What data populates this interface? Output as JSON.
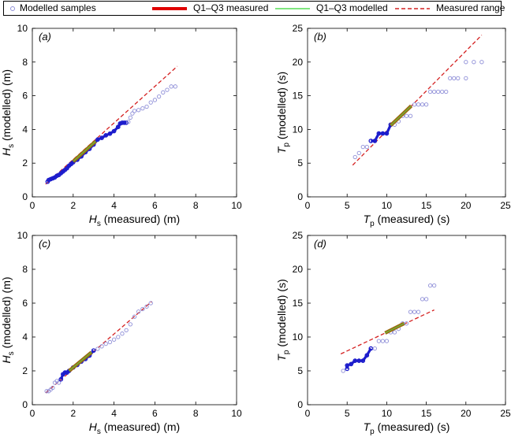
{
  "legend": {
    "items": [
      {
        "label": "Modelled samples",
        "kind": "marker",
        "color": "#8f8fd8"
      },
      {
        "label": "Q1–Q3 measured",
        "kind": "thick-line",
        "color": "#e00000"
      },
      {
        "label": "Q1–Q3 modelled",
        "kind": "thin-line",
        "color": "#55dd55"
      },
      {
        "label": "Measured range",
        "kind": "dashed-line",
        "color": "#d42020"
      }
    ]
  },
  "colors": {
    "samples": "#8f8fd8",
    "samples_dense": "#1c1ccc",
    "q_measured": "#e00000",
    "q_modelled": "#55dd55",
    "q_overlap": "#9a6a10",
    "range": "#d42020"
  },
  "chart_data": [
    {
      "type": "scatter",
      "panel": "(a)",
      "x_label_main": "H",
      "x_label_sub": "s",
      "x_label_rest": " (measured) (m)",
      "y_label_main": "H",
      "y_label_sub": "s",
      "y_label_rest": " (modelled) (m)",
      "xlim": [
        0,
        10
      ],
      "ylim": [
        0,
        10
      ],
      "xticks": [
        0,
        2,
        4,
        6,
        8,
        10
      ],
      "yticks": [
        0,
        2,
        4,
        6,
        8,
        10
      ],
      "samples": [
        [
          0.75,
          0.9
        ],
        [
          0.8,
          1.0
        ],
        [
          0.9,
          1.05
        ],
        [
          1.0,
          1.1
        ],
        [
          1.1,
          1.15
        ],
        [
          1.2,
          1.25
        ],
        [
          1.3,
          1.3
        ],
        [
          1.4,
          1.4
        ],
        [
          1.5,
          1.5
        ],
        [
          1.6,
          1.6
        ],
        [
          1.7,
          1.7
        ],
        [
          1.8,
          1.85
        ],
        [
          1.9,
          1.95
        ],
        [
          2.0,
          2.05
        ],
        [
          2.2,
          2.2
        ],
        [
          2.4,
          2.4
        ],
        [
          2.6,
          2.65
        ],
        [
          2.8,
          2.85
        ],
        [
          3.0,
          3.1
        ],
        [
          3.2,
          3.4
        ],
        [
          3.4,
          3.5
        ],
        [
          3.6,
          3.65
        ],
        [
          3.8,
          3.75
        ],
        [
          4.0,
          3.9
        ],
        [
          4.2,
          4.15
        ],
        [
          4.3,
          4.35
        ],
        [
          4.4,
          4.4
        ],
        [
          4.5,
          4.4
        ],
        [
          4.6,
          4.4
        ],
        [
          4.7,
          4.45
        ],
        [
          4.8,
          4.7
        ],
        [
          4.9,
          4.95
        ],
        [
          5.0,
          5.1
        ],
        [
          5.2,
          5.15
        ],
        [
          5.4,
          5.25
        ],
        [
          5.6,
          5.35
        ],
        [
          5.8,
          5.6
        ],
        [
          6.0,
          5.75
        ],
        [
          6.2,
          5.95
        ],
        [
          6.4,
          6.2
        ],
        [
          6.6,
          6.35
        ],
        [
          6.8,
          6.55
        ],
        [
          7.0,
          6.55
        ]
      ],
      "dense_range": [
        0.7,
        4.6
      ],
      "q_measured": [
        [
          2.0,
          2.1
        ],
        [
          3.1,
          3.3
        ]
      ],
      "q_modelled": [
        [
          2.0,
          2.1
        ],
        [
          3.1,
          3.3
        ]
      ],
      "range_line": [
        [
          0.65,
          0.75
        ],
        [
          7.1,
          7.75
        ]
      ]
    },
    {
      "type": "scatter",
      "panel": "(b)",
      "x_label_main": "T",
      "x_label_sub": "p",
      "x_label_rest": " (measured) (s)",
      "y_label_main": "T",
      "y_label_sub": "p",
      "y_label_rest": " (modelled) (s)",
      "xlim": [
        0,
        25
      ],
      "ylim": [
        0,
        25
      ],
      "xticks": [
        0,
        5,
        10,
        15,
        20,
        25
      ],
      "yticks": [
        0,
        5,
        10,
        15,
        20,
        25
      ],
      "samples": [
        [
          6.0,
          5.9
        ],
        [
          6.5,
          6.5
        ],
        [
          7.0,
          7.4
        ],
        [
          7.5,
          7.4
        ],
        [
          8.0,
          8.3
        ],
        [
          8.5,
          8.3
        ],
        [
          9.0,
          9.4
        ],
        [
          9.5,
          9.4
        ],
        [
          10.0,
          9.4
        ],
        [
          10.5,
          10.7
        ],
        [
          11.0,
          10.7
        ],
        [
          11.5,
          11.2
        ],
        [
          12.0,
          12.0
        ],
        [
          12.5,
          12.0
        ],
        [
          13.0,
          12.0
        ],
        [
          13.5,
          13.7
        ],
        [
          14.0,
          13.7
        ],
        [
          14.5,
          13.7
        ],
        [
          15.0,
          13.7
        ],
        [
          15.5,
          15.6
        ],
        [
          16.0,
          15.6
        ],
        [
          16.5,
          15.6
        ],
        [
          17.0,
          15.6
        ],
        [
          17.5,
          15.6
        ],
        [
          18.0,
          17.6
        ],
        [
          18.5,
          17.6
        ],
        [
          19.0,
          17.6
        ],
        [
          20.0,
          17.6
        ],
        [
          20.0,
          20.0
        ],
        [
          21.0,
          20.0
        ],
        [
          22.0,
          20.0
        ]
      ],
      "dense_range": [
        8.0,
        10.5
      ],
      "q_measured": [
        [
          10.5,
          10.6
        ],
        [
          13.1,
          13.5
        ]
      ],
      "q_modelled": [
        [
          10.5,
          10.6
        ],
        [
          13.1,
          13.5
        ]
      ],
      "range_line": [
        [
          5.7,
          4.7
        ],
        [
          22.0,
          24.0
        ]
      ]
    },
    {
      "type": "scatter",
      "panel": "(c)",
      "x_label_main": "H",
      "x_label_sub": "s",
      "x_label_rest": " (measured) (m)",
      "y_label_main": "H",
      "y_label_sub": "s",
      "y_label_rest": " (modelled) (m)",
      "xlim": [
        0,
        10
      ],
      "ylim": [
        0,
        10
      ],
      "xticks": [
        0,
        2,
        4,
        6,
        8,
        10
      ],
      "yticks": [
        0,
        2,
        4,
        6,
        8,
        10
      ],
      "samples": [
        [
          0.7,
          0.8
        ],
        [
          0.8,
          0.8
        ],
        [
          0.9,
          0.9
        ],
        [
          1.0,
          1.0
        ],
        [
          1.1,
          1.3
        ],
        [
          1.2,
          1.4
        ],
        [
          1.3,
          1.3
        ],
        [
          1.4,
          1.5
        ],
        [
          1.5,
          1.8
        ],
        [
          1.6,
          1.9
        ],
        [
          1.7,
          1.9
        ],
        [
          1.8,
          2.0
        ],
        [
          2.0,
          2.2
        ],
        [
          2.2,
          2.35
        ],
        [
          2.4,
          2.55
        ],
        [
          2.6,
          2.7
        ],
        [
          2.8,
          2.9
        ],
        [
          3.0,
          3.2
        ],
        [
          3.2,
          3.3
        ],
        [
          3.4,
          3.45
        ],
        [
          3.6,
          3.6
        ],
        [
          3.8,
          3.7
        ],
        [
          4.0,
          3.85
        ],
        [
          4.2,
          4.0
        ],
        [
          4.4,
          4.2
        ],
        [
          4.6,
          4.4
        ],
        [
          4.8,
          4.75
        ],
        [
          5.0,
          5.2
        ],
        [
          5.2,
          5.5
        ],
        [
          5.4,
          5.65
        ],
        [
          5.6,
          5.8
        ],
        [
          5.8,
          6.0
        ]
      ],
      "dense_range": [
        1.4,
        3.0
      ],
      "q_measured": [
        [
          1.8,
          2.0
        ],
        [
          2.9,
          3.1
        ]
      ],
      "q_modelled": [
        [
          1.8,
          2.0
        ],
        [
          2.9,
          3.1
        ]
      ],
      "range_line": [
        [
          0.65,
          0.7
        ],
        [
          5.85,
          6.1
        ]
      ]
    },
    {
      "type": "scatter",
      "panel": "(d)",
      "x_label_main": "T",
      "x_label_sub": "p",
      "x_label_rest": " (measured) (s)",
      "y_label_main": "T",
      "y_label_sub": "p",
      "y_label_rest": " (modelled) (s)",
      "xlim": [
        0,
        25
      ],
      "ylim": [
        0,
        25
      ],
      "xticks": [
        0,
        5,
        10,
        15,
        20,
        25
      ],
      "yticks": [
        0,
        5,
        10,
        15,
        20,
        25
      ],
      "samples": [
        [
          4.5,
          5.0
        ],
        [
          5.0,
          5.3
        ],
        [
          5.0,
          5.8
        ],
        [
          5.5,
          6.0
        ],
        [
          6.0,
          6.5
        ],
        [
          6.5,
          6.5
        ],
        [
          7.0,
          6.5
        ],
        [
          7.5,
          7.3
        ],
        [
          8.0,
          8.3
        ],
        [
          8.5,
          8.3
        ],
        [
          9.0,
          9.4
        ],
        [
          9.5,
          9.4
        ],
        [
          10.0,
          9.4
        ],
        [
          10.5,
          10.7
        ],
        [
          11.0,
          10.7
        ],
        [
          11.5,
          11.2
        ],
        [
          12.0,
          12.0
        ],
        [
          12.5,
          12.0
        ],
        [
          13.0,
          13.7
        ],
        [
          13.5,
          13.7
        ],
        [
          14.0,
          13.7
        ],
        [
          14.5,
          15.6
        ],
        [
          15.0,
          15.6
        ],
        [
          15.5,
          17.6
        ],
        [
          16.0,
          17.6
        ]
      ],
      "dense_range": [
        5.0,
        8.0
      ],
      "q_measured": [
        [
          9.8,
          10.6
        ],
        [
          12.2,
          12.0
        ]
      ],
      "q_modelled": [
        [
          9.8,
          10.6
        ],
        [
          12.2,
          12.0
        ]
      ],
      "range_line": [
        [
          4.2,
          7.5
        ],
        [
          16.0,
          14.0
        ]
      ]
    }
  ]
}
